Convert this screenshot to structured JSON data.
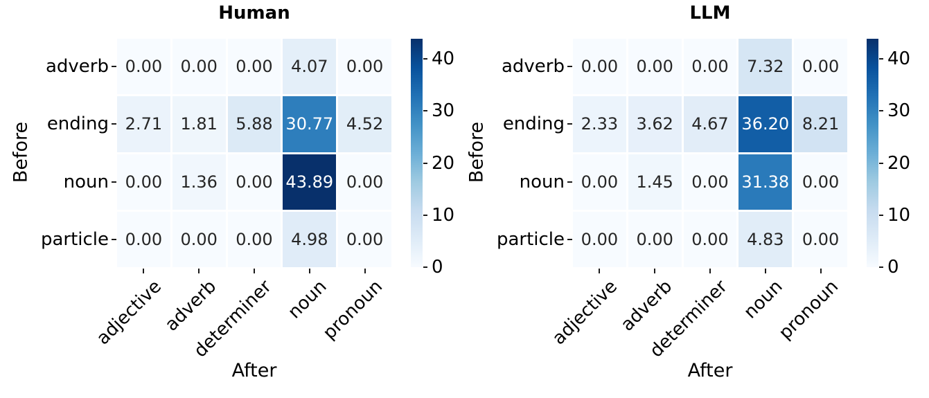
{
  "figure": {
    "background": "#ffffff",
    "colormap": {
      "name": "Blues",
      "vmin": 0,
      "vmax": 43.89,
      "stops": [
        "#f7fbff",
        "#deebf7",
        "#c6dbef",
        "#9ecae1",
        "#6baed6",
        "#4292c6",
        "#2171b5",
        "#08519c",
        "#08306b"
      ]
    },
    "annotation_dark_text": "#262626",
    "annotation_light_text": "#ffffff",
    "tick_color": "#1a1a1a"
  },
  "chart_data": [
    {
      "type": "heatmap",
      "title": "Human",
      "xlabel": "After",
      "ylabel": "Before",
      "x_categories": [
        "adjective",
        "adverb",
        "determiner",
        "noun",
        "pronoun"
      ],
      "y_categories": [
        "adverb",
        "ending",
        "noun",
        "particle"
      ],
      "values": [
        [
          0.0,
          0.0,
          0.0,
          4.07,
          0.0
        ],
        [
          2.71,
          1.81,
          5.88,
          30.77,
          4.52
        ],
        [
          0.0,
          1.36,
          0.0,
          43.89,
          0.0
        ],
        [
          0.0,
          0.0,
          0.0,
          4.98,
          0.0
        ]
      ],
      "value_decimals": 2,
      "colorbar_ticks": [
        0,
        10,
        20,
        30,
        40
      ],
      "colorbar_position": "right",
      "grid": false
    },
    {
      "type": "heatmap",
      "title": "LLM",
      "xlabel": "After",
      "ylabel": "Before",
      "x_categories": [
        "adjective",
        "adverb",
        "determiner",
        "noun",
        "pronoun"
      ],
      "y_categories": [
        "adverb",
        "ending",
        "noun",
        "particle"
      ],
      "values": [
        [
          0.0,
          0.0,
          0.0,
          7.32,
          0.0
        ],
        [
          2.33,
          3.62,
          4.67,
          36.2,
          8.21
        ],
        [
          0.0,
          1.45,
          0.0,
          31.38,
          0.0
        ],
        [
          0.0,
          0.0,
          0.0,
          4.83,
          0.0
        ]
      ],
      "value_decimals": 2,
      "colorbar_ticks": [
        0,
        10,
        20,
        30,
        40
      ],
      "colorbar_position": "right",
      "grid": false
    }
  ]
}
